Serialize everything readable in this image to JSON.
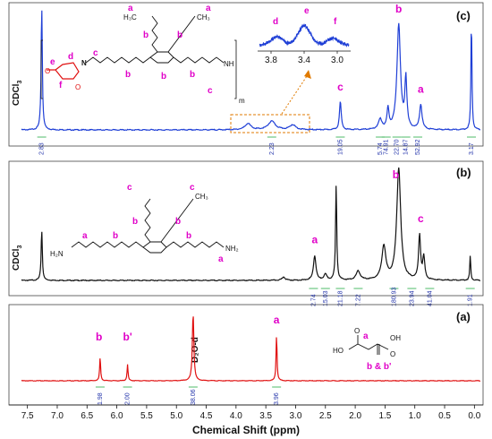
{
  "chart_data": {
    "type": "line",
    "xlabel": "Chemical Shift (ppm)",
    "xlim": [
      7.6,
      -0.1
    ],
    "x_ticks": [
      "7.5",
      "7.0",
      "6.5",
      "6.0",
      "5.5",
      "5.0",
      "4.5",
      "4.0",
      "3.5",
      "3.0",
      "2.5",
      "2.0",
      "1.5",
      "1.0",
      "0.5",
      "0.0"
    ],
    "panels": [
      {
        "id": "c",
        "tag": "(c)",
        "color": "#1f3fd6",
        "solvent_label": "CDCl",
        "solvent_sub": "3",
        "peaks": [
          {
            "x": 7.26,
            "h": 1.0,
            "w": 0.012
          },
          {
            "x": 3.8,
            "h": 0.05,
            "w": 0.06
          },
          {
            "x": 3.4,
            "h": 0.07,
            "w": 0.07
          },
          {
            "x": 3.05,
            "h": 0.04,
            "w": 0.06
          },
          {
            "x": 2.25,
            "h": 0.23,
            "w": 0.018
          },
          {
            "x": 1.58,
            "h": 0.08,
            "w": 0.035
          },
          {
            "x": 1.45,
            "h": 0.16,
            "w": 0.02
          },
          {
            "x": 1.27,
            "h": 0.85,
            "w": 0.035
          },
          {
            "x": 1.15,
            "h": 0.4,
            "w": 0.02
          },
          {
            "x": 0.9,
            "h": 0.2,
            "w": 0.025
          },
          {
            "x": 0.05,
            "h": 0.9,
            "w": 0.01
          }
        ],
        "peak_labels": [
          {
            "text": "c",
            "x": 2.25,
            "y_frac": 0.29
          },
          {
            "text": "b",
            "x": 1.27,
            "y_frac": 0.92
          },
          {
            "text": "a",
            "x": 0.9,
            "y_frac": 0.27
          }
        ],
        "integrals": [
          {
            "x": 7.26,
            "label": "2.83"
          },
          {
            "x": 3.4,
            "label": "2.23"
          },
          {
            "x": 2.25,
            "label": "19.05"
          },
          {
            "x": 1.58,
            "label": "5.74"
          },
          {
            "x": 1.48,
            "label": "74.91"
          },
          {
            "x": 1.3,
            "label": "22.70"
          },
          {
            "x": 1.15,
            "label": "14.87"
          },
          {
            "x": 0.95,
            "label": "52.92"
          },
          {
            "x": 0.05,
            "label": "3.17"
          }
        ],
        "inset": {
          "x_ticks": [
            "3.8",
            "3.4",
            "3.0"
          ],
          "labels": [
            "d",
            "e",
            "f"
          ]
        },
        "molecule": {
          "ch3": "H₃C",
          "ch3_right": "CH₃",
          "nh": "NH",
          "m": "m",
          "n": "N",
          "o": "O",
          "letters": [
            "a",
            "a",
            "b",
            "b",
            "b",
            "b",
            "b",
            "c",
            "c",
            "d",
            "e",
            "f"
          ]
        }
      },
      {
        "id": "b",
        "tag": "(b)",
        "color": "#111111",
        "solvent_label": "CDCl",
        "solvent_sub": "3",
        "peaks": [
          {
            "x": 7.26,
            "h": 0.45,
            "w": 0.012
          },
          {
            "x": 3.2,
            "h": 0.03,
            "w": 0.03
          },
          {
            "x": 2.68,
            "h": 0.22,
            "w": 0.025
          },
          {
            "x": 2.5,
            "h": 0.05,
            "w": 0.03
          },
          {
            "x": 2.32,
            "h": 0.85,
            "w": 0.012
          },
          {
            "x": 1.95,
            "h": 0.08,
            "w": 0.04
          },
          {
            "x": 1.52,
            "h": 0.3,
            "w": 0.04
          },
          {
            "x": 1.27,
            "h": 1.0,
            "w": 0.04
          },
          {
            "x": 0.92,
            "h": 0.4,
            "w": 0.02
          },
          {
            "x": 0.85,
            "h": 0.2,
            "w": 0.02
          },
          {
            "x": 0.07,
            "h": 0.22,
            "w": 0.01
          }
        ],
        "peak_labels": [
          {
            "text": "a",
            "x": 2.68,
            "y_frac": 0.3
          },
          {
            "text": "b",
            "x": 1.32,
            "y_frac": 0.88
          },
          {
            "text": "c",
            "x": 0.9,
            "y_frac": 0.49
          }
        ],
        "integrals": [
          {
            "x": 2.7,
            "label": "2.74"
          },
          {
            "x": 2.5,
            "label": "15.03"
          },
          {
            "x": 2.25,
            "label": "21.18"
          },
          {
            "x": 1.95,
            "label": "7.22"
          },
          {
            "x": 1.35,
            "label": "180.93"
          },
          {
            "x": 1.05,
            "label": "23.94"
          },
          {
            "x": 0.75,
            "label": "41.04"
          },
          {
            "x": 0.07,
            "label": "1.91"
          }
        ],
        "molecule": {
          "ch3": "CH₃",
          "h2n": "H₂N",
          "nh2": "NH₂",
          "letters": [
            "a",
            "a",
            "b",
            "b",
            "b",
            "b",
            "c",
            "c"
          ]
        }
      },
      {
        "id": "a",
        "tag": "(a)",
        "color": "#e01010",
        "solvent_label": "D₂O-d",
        "peaks": [
          {
            "x": 6.28,
            "h": 0.35,
            "w": 0.01
          },
          {
            "x": 5.82,
            "h": 0.24,
            "w": 0.01
          },
          {
            "x": 4.72,
            "h": 1.0,
            "w": 0.015
          },
          {
            "x": 3.32,
            "h": 0.68,
            "w": 0.01
          }
        ],
        "peak_labels": [
          {
            "text": "b",
            "x": 6.3,
            "y_frac": 0.55
          },
          {
            "text": "b'",
            "x": 5.82,
            "y_frac": 0.55
          },
          {
            "text": "a",
            "x": 3.32,
            "y_frac": 0.8
          }
        ],
        "integrals": [
          {
            "x": 6.28,
            "label": "1.98"
          },
          {
            "x": 5.82,
            "label": "2.00"
          },
          {
            "x": 4.72,
            "label": "38.06"
          },
          {
            "x": 3.32,
            "label": "3.96"
          }
        ],
        "molecule": {
          "ho": "HO",
          "oh": "OH",
          "o": "O",
          "a": "a",
          "bb": "b & b'"
        }
      }
    ]
  }
}
